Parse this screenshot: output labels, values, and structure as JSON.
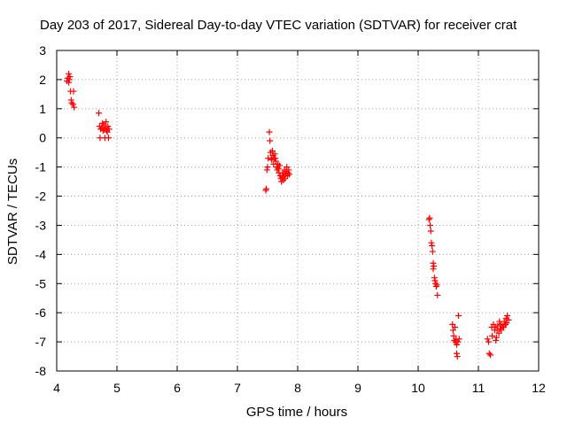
{
  "chart_data": {
    "type": "scatter",
    "title": "Day 203 of 2017, Sidereal Day-to-day VTEC variation (SDTVAR) for receiver crat",
    "xlabel": "GPS time / hours",
    "ylabel": "SDTVAR / TECUs",
    "xlim": [
      4,
      12
    ],
    "ylim": [
      -8,
      3
    ],
    "xticks": [
      "4",
      "5",
      "6",
      "7",
      "8",
      "9",
      "10",
      "11",
      "12"
    ],
    "yticks": [
      "3",
      "2",
      "1",
      "0",
      "-1",
      "-2",
      "-3",
      "-4",
      "-5",
      "-6",
      "-7",
      "-8"
    ],
    "xtick_values": [
      4,
      5,
      6,
      7,
      8,
      9,
      10,
      11,
      12
    ],
    "ytick_values": [
      3,
      2,
      1,
      0,
      -1,
      -2,
      -3,
      -4,
      -5,
      -6,
      -7,
      -8
    ],
    "grid": true,
    "marker": "+",
    "color": "#ff0000",
    "series": [
      {
        "name": "SDTVAR",
        "points": [
          [
            4.17,
            1.95
          ],
          [
            4.18,
            2.05
          ],
          [
            4.2,
            2.2
          ],
          [
            4.2,
            1.9
          ],
          [
            4.21,
            2.0
          ],
          [
            4.22,
            2.1
          ],
          [
            4.23,
            1.6
          ],
          [
            4.24,
            1.3
          ],
          [
            4.25,
            1.2
          ],
          [
            4.27,
            1.15
          ],
          [
            4.28,
            1.6
          ],
          [
            4.29,
            1.05
          ],
          [
            4.7,
            0.85
          ],
          [
            4.71,
            0.4
          ],
          [
            4.72,
            0.0
          ],
          [
            4.73,
            0.3
          ],
          [
            4.75,
            0.35
          ],
          [
            4.76,
            0.5
          ],
          [
            4.77,
            0.25
          ],
          [
            4.78,
            0.45
          ],
          [
            4.79,
            0.3
          ],
          [
            4.8,
            0.0
          ],
          [
            4.81,
            0.35
          ],
          [
            4.82,
            0.55
          ],
          [
            4.83,
            0.25
          ],
          [
            4.84,
            0.2
          ],
          [
            4.85,
            0.4
          ],
          [
            4.86,
            0.0
          ],
          [
            4.87,
            0.3
          ],
          [
            7.47,
            -1.8
          ],
          [
            7.48,
            -1.75
          ],
          [
            7.49,
            -1.1
          ],
          [
            7.5,
            -1.0
          ],
          [
            7.51,
            -0.7
          ],
          [
            7.53,
            0.2
          ],
          [
            7.54,
            -0.1
          ],
          [
            7.55,
            -0.5
          ],
          [
            7.56,
            -0.7
          ],
          [
            7.57,
            -0.75
          ],
          [
            7.58,
            -0.45
          ],
          [
            7.59,
            -0.6
          ],
          [
            7.6,
            -0.9
          ],
          [
            7.61,
            -0.7
          ],
          [
            7.62,
            -0.55
          ],
          [
            7.63,
            -0.7
          ],
          [
            7.64,
            -0.8
          ],
          [
            7.65,
            -1.0
          ],
          [
            7.66,
            -1.1
          ],
          [
            7.67,
            -0.9
          ],
          [
            7.68,
            -1.05
          ],
          [
            7.69,
            -1.2
          ],
          [
            7.7,
            -0.95
          ],
          [
            7.71,
            -1.3
          ],
          [
            7.72,
            -1.4
          ],
          [
            7.73,
            -1.5
          ],
          [
            7.74,
            -1.35
          ],
          [
            7.75,
            -1.2
          ],
          [
            7.76,
            -1.45
          ],
          [
            7.77,
            -1.3
          ],
          [
            7.78,
            -1.1
          ],
          [
            7.79,
            -1.4
          ],
          [
            7.8,
            -1.25
          ],
          [
            7.81,
            -1.15
          ],
          [
            7.82,
            -1.0
          ],
          [
            7.83,
            -1.3
          ],
          [
            7.84,
            -1.2
          ],
          [
            7.85,
            -1.1
          ],
          [
            7.86,
            -1.25
          ],
          [
            10.18,
            -2.8
          ],
          [
            10.19,
            -2.75
          ],
          [
            10.2,
            -3.0
          ],
          [
            10.21,
            -3.2
          ],
          [
            10.22,
            -3.6
          ],
          [
            10.23,
            -3.7
          ],
          [
            10.24,
            -3.9
          ],
          [
            10.25,
            -4.3
          ],
          [
            10.25,
            -4.5
          ],
          [
            10.26,
            -4.4
          ],
          [
            10.27,
            -4.8
          ],
          [
            10.28,
            -4.9
          ],
          [
            10.29,
            -5.0
          ],
          [
            10.3,
            -5.1
          ],
          [
            10.31,
            -5.05
          ],
          [
            10.32,
            -5.4
          ],
          [
            10.57,
            -6.4
          ],
          [
            10.58,
            -6.6
          ],
          [
            10.59,
            -6.8
          ],
          [
            10.6,
            -6.95
          ],
          [
            10.61,
            -6.5
          ],
          [
            10.62,
            -7.0
          ],
          [
            10.63,
            -6.9
          ],
          [
            10.64,
            -7.1
          ],
          [
            10.65,
            -7.5
          ],
          [
            10.66,
            -7.0
          ],
          [
            10.67,
            -6.1
          ],
          [
            10.68,
            -6.9
          ],
          [
            10.64,
            -7.4
          ],
          [
            11.15,
            -6.9
          ],
          [
            11.17,
            -7.0
          ],
          [
            11.18,
            -7.4
          ],
          [
            11.2,
            -7.45
          ],
          [
            11.22,
            -6.5
          ],
          [
            11.23,
            -6.8
          ],
          [
            11.25,
            -6.4
          ],
          [
            11.27,
            -6.6
          ],
          [
            11.28,
            -6.5
          ],
          [
            11.29,
            -6.95
          ],
          [
            11.3,
            -6.85
          ],
          [
            11.31,
            -6.6
          ],
          [
            11.32,
            -6.45
          ],
          [
            11.34,
            -6.7
          ],
          [
            11.35,
            -6.3
          ],
          [
            11.36,
            -6.55
          ],
          [
            11.37,
            -6.4
          ],
          [
            11.38,
            -6.6
          ],
          [
            11.4,
            -6.45
          ],
          [
            11.42,
            -6.5
          ],
          [
            11.43,
            -6.3
          ],
          [
            11.45,
            -6.4
          ],
          [
            11.46,
            -6.2
          ],
          [
            11.47,
            -6.35
          ],
          [
            11.48,
            -6.1
          ],
          [
            11.5,
            -6.25
          ]
        ]
      }
    ]
  }
}
